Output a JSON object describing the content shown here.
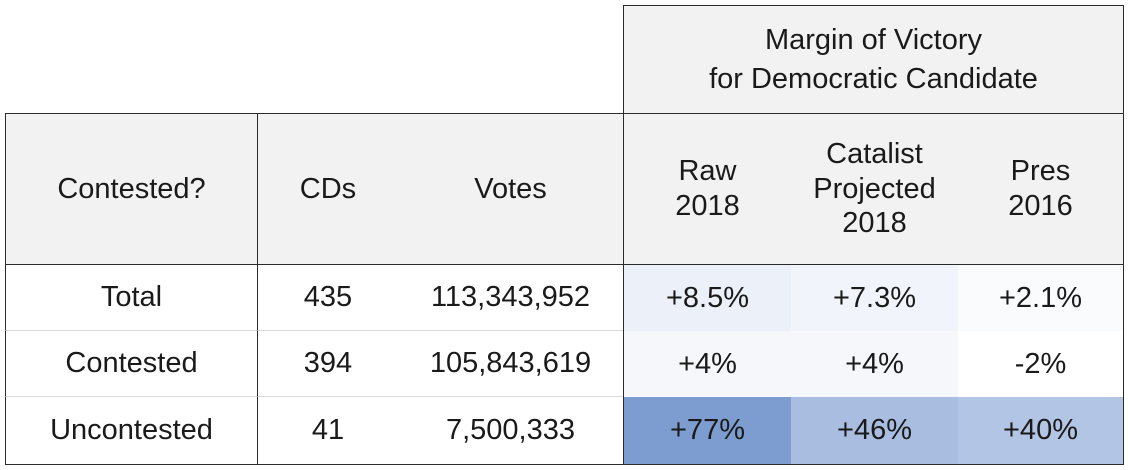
{
  "group_header": {
    "line1": "Margin of Victory",
    "line2": "for Democratic Candidate"
  },
  "columns": {
    "contested": "Contested?",
    "cds": "CDs",
    "votes": "Votes",
    "raw": [
      "Raw",
      "2018"
    ],
    "catalist": [
      "Catalist",
      "Projected",
      "2018"
    ],
    "pres": [
      "Pres",
      "2016"
    ]
  },
  "rows": [
    {
      "label": "Total",
      "cds": "435",
      "votes": "113,343,952",
      "raw": "+8.5%",
      "catalist": "+7.3%",
      "pres": "+2.1%"
    },
    {
      "label": "Contested",
      "cds": "394",
      "votes": "105,843,619",
      "raw": "+4%",
      "catalist": "+4%",
      "pres": "-2%"
    },
    {
      "label": "Uncontested",
      "cds": "41",
      "votes": "7,500,333",
      "raw": "+77%",
      "catalist": "+46%",
      "pres": "+40%"
    }
  ],
  "heat_colors": {
    "row0": [
      "#ecf0f8",
      "#f1f4fa",
      "#fafbfd"
    ],
    "row1": [
      "#f6f7fb",
      "#f6f7fb",
      "#ffffff"
    ],
    "row2": [
      "#7d9ccf",
      "#a9bde0",
      "#b3c5e4"
    ]
  }
}
